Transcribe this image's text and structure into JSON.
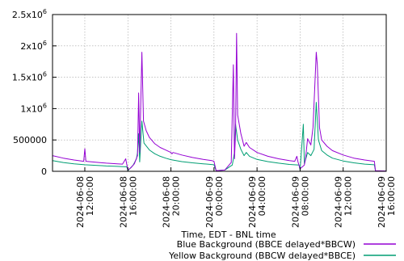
{
  "chart_data": {
    "type": "line",
    "title": "",
    "xlabel": "Time, EDT - BNL time",
    "ylabel": "",
    "ylim": [
      0,
      2500000
    ],
    "grid": true,
    "legend_position": "bottom-right",
    "y_ticks": [
      {
        "value": 0,
        "label": "0"
      },
      {
        "value": 500000,
        "label": "500000"
      },
      {
        "value": 1000000,
        "label": "1x10",
        "exp": "6"
      },
      {
        "value": 1500000,
        "label": "1.5x10",
        "exp": "6"
      },
      {
        "value": 2000000,
        "label": "2x10",
        "exp": "6"
      },
      {
        "value": 2500000,
        "label": "2.5x10",
        "exp": "6"
      }
    ],
    "x_ticks": [
      {
        "hour": 12,
        "line1": "2024-06-08",
        "line2": "12:00:00"
      },
      {
        "hour": 16,
        "line1": "2024-06-08",
        "line2": "16:00:00"
      },
      {
        "hour": 20,
        "line1": "2024-06-08",
        "line2": "20:00:00"
      },
      {
        "hour": 24,
        "line1": "2024-06-09",
        "line2": "00:00:00"
      },
      {
        "hour": 28,
        "line1": "2024-06-09",
        "line2": "04:00:00"
      },
      {
        "hour": 32,
        "line1": "2024-06-09",
        "line2": "08:00:00"
      },
      {
        "hour": 36,
        "line1": "2024-06-09",
        "line2": "12:00:00"
      },
      {
        "hour": 40,
        "line1": "2024-06-09",
        "line2": "16:00:00"
      }
    ],
    "x_range_hours": [
      9,
      40
    ],
    "series": [
      {
        "name": "Blue Background (BBCE delayed*BBCW)",
        "color": "#9400d3",
        "points": [
          [
            9.0,
            250000
          ],
          [
            10.0,
            210000
          ],
          [
            11.0,
            180000
          ],
          [
            11.9,
            160000
          ],
          [
            12.0,
            360000
          ],
          [
            12.1,
            160000
          ],
          [
            13.0,
            145000
          ],
          [
            14.0,
            130000
          ],
          [
            15.0,
            120000
          ],
          [
            15.5,
            115000
          ],
          [
            15.8,
            200000
          ],
          [
            15.9,
            110000
          ],
          [
            16.0,
            20000
          ],
          [
            16.3,
            60000
          ],
          [
            16.6,
            120000
          ],
          [
            16.9,
            250000
          ],
          [
            17.0,
            1250000
          ],
          [
            17.1,
            300000
          ],
          [
            17.3,
            1900000
          ],
          [
            17.45,
            800000
          ],
          [
            17.7,
            650000
          ],
          [
            18.0,
            540000
          ],
          [
            18.5,
            440000
          ],
          [
            19.0,
            380000
          ],
          [
            19.5,
            340000
          ],
          [
            20.0,
            300000
          ],
          [
            20.1,
            280000
          ],
          [
            20.2,
            300000
          ],
          [
            21.0,
            260000
          ],
          [
            22.0,
            220000
          ],
          [
            23.0,
            190000
          ],
          [
            23.8,
            170000
          ],
          [
            24.0,
            160000
          ],
          [
            24.2,
            10000
          ],
          [
            25.0,
            20000
          ],
          [
            25.6,
            140000
          ],
          [
            25.8,
            1700000
          ],
          [
            25.9,
            200000
          ],
          [
            26.0,
            600000
          ],
          [
            26.1,
            2200000
          ],
          [
            26.2,
            900000
          ],
          [
            26.5,
            600000
          ],
          [
            26.8,
            400000
          ],
          [
            27.0,
            460000
          ],
          [
            27.3,
            380000
          ],
          [
            28.0,
            300000
          ],
          [
            29.0,
            240000
          ],
          [
            30.0,
            200000
          ],
          [
            31.0,
            170000
          ],
          [
            31.5,
            160000
          ],
          [
            31.7,
            240000
          ],
          [
            31.8,
            150000
          ],
          [
            32.0,
            40000
          ],
          [
            32.4,
            100000
          ],
          [
            32.5,
            200000
          ],
          [
            32.7,
            520000
          ],
          [
            33.0,
            420000
          ],
          [
            33.2,
            700000
          ],
          [
            33.5,
            1900000
          ],
          [
            33.6,
            1700000
          ],
          [
            33.8,
            700000
          ],
          [
            34.0,
            500000
          ],
          [
            34.5,
            400000
          ],
          [
            35.0,
            330000
          ],
          [
            36.0,
            260000
          ],
          [
            37.0,
            210000
          ],
          [
            38.0,
            180000
          ],
          [
            38.9,
            160000
          ],
          [
            39.0,
            10000
          ],
          [
            40.0,
            5000
          ]
        ]
      },
      {
        "name": "Yellow Background (BBCW delayed*BBCE)",
        "color": "#009e73",
        "points": [
          [
            9.0,
            170000
          ],
          [
            10.0,
            140000
          ],
          [
            11.0,
            120000
          ],
          [
            12.0,
            105000
          ],
          [
            13.0,
            95000
          ],
          [
            14.0,
            85000
          ],
          [
            15.0,
            78000
          ],
          [
            15.5,
            75000
          ],
          [
            15.9,
            72000
          ],
          [
            16.0,
            10000
          ],
          [
            16.5,
            100000
          ],
          [
            16.8,
            200000
          ],
          [
            16.9,
            300000
          ],
          [
            17.0,
            600000
          ],
          [
            17.1,
            150000
          ],
          [
            17.3,
            800000
          ],
          [
            17.5,
            450000
          ],
          [
            18.0,
            340000
          ],
          [
            18.5,
            280000
          ],
          [
            19.0,
            240000
          ],
          [
            19.5,
            210000
          ],
          [
            20.0,
            185000
          ],
          [
            21.0,
            155000
          ],
          [
            22.0,
            135000
          ],
          [
            23.0,
            120000
          ],
          [
            24.0,
            105000
          ],
          [
            24.2,
            10000
          ],
          [
            25.0,
            20000
          ],
          [
            25.7,
            100000
          ],
          [
            25.9,
            300000
          ],
          [
            26.0,
            750000
          ],
          [
            26.2,
            500000
          ],
          [
            26.5,
            350000
          ],
          [
            26.8,
            250000
          ],
          [
            27.0,
            300000
          ],
          [
            27.3,
            240000
          ],
          [
            28.0,
            190000
          ],
          [
            29.0,
            155000
          ],
          [
            30.0,
            130000
          ],
          [
            31.0,
            110000
          ],
          [
            31.9,
            100000
          ],
          [
            32.0,
            20000
          ],
          [
            32.3,
            750000
          ],
          [
            32.4,
            120000
          ],
          [
            32.7,
            300000
          ],
          [
            33.0,
            250000
          ],
          [
            33.3,
            350000
          ],
          [
            33.5,
            1100000
          ],
          [
            33.7,
            500000
          ],
          [
            34.0,
            330000
          ],
          [
            34.5,
            260000
          ],
          [
            35.0,
            210000
          ],
          [
            36.0,
            165000
          ],
          [
            37.0,
            135000
          ],
          [
            38.0,
            115000
          ],
          [
            38.9,
            105000
          ],
          [
            39.0,
            8000
          ],
          [
            40.0,
            4000
          ]
        ]
      }
    ]
  }
}
